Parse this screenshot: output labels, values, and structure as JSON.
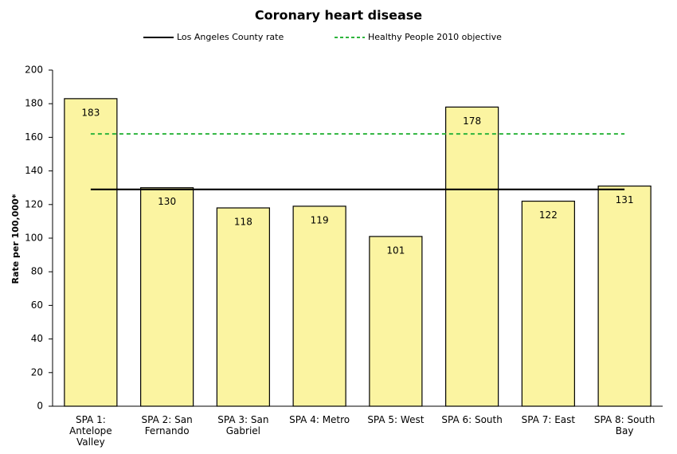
{
  "chart_data": {
    "type": "bar",
    "title": "Coronary heart disease",
    "y_label": "Rate per 100,000*",
    "categories": [
      "SPA 1: Antelope Valley",
      "SPA 2: San Fernando",
      "SPA 3: San Gabriel",
      "SPA 4: Metro",
      "SPA 5: West",
      "SPA 6: South",
      "SPA 7: East",
      "SPA 8: South Bay"
    ],
    "values": [
      183,
      130,
      118,
      119,
      101,
      178,
      122,
      131
    ],
    "color": "#fbf4a1",
    "ylim": [
      0,
      200
    ],
    "yticks": [
      0,
      20,
      40,
      60,
      80,
      100,
      120,
      140,
      160,
      180,
      200
    ],
    "reference_lines": [
      {
        "name": "Los Angeles County rate",
        "value": 129,
        "color": "#000000",
        "style": "solid"
      },
      {
        "name": "Healthy People 2010 objective",
        "value": 162,
        "color": "#2db43c",
        "style": "dashed"
      }
    ]
  }
}
